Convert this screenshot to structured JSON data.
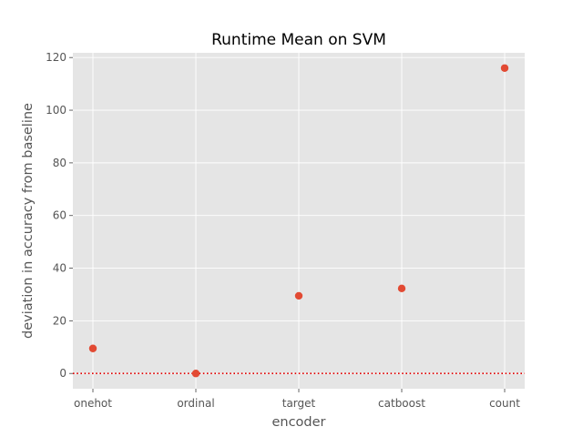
{
  "chart_data": {
    "type": "scatter",
    "title": "Runtime Mean on SVM",
    "xlabel": "encoder",
    "ylabel": "deviation in accuracy from baseline",
    "categories": [
      "onehot",
      "ordinal",
      "target",
      "catboost",
      "count"
    ],
    "values": [
      9.5,
      0.0,
      29.5,
      32.3,
      116.0
    ],
    "ylim": [
      -5.8,
      121.8
    ],
    "yticks": [
      "0",
      "20",
      "40",
      "60",
      "80",
      "100",
      "120"
    ],
    "reference_line": {
      "y": 0,
      "style": "dotted",
      "color": "#e00000"
    },
    "grid": true,
    "style": "ggplot",
    "colors": {
      "marker": "#e24a33",
      "plot_background": "#e5e5e5",
      "grid": "#ffffff"
    }
  }
}
